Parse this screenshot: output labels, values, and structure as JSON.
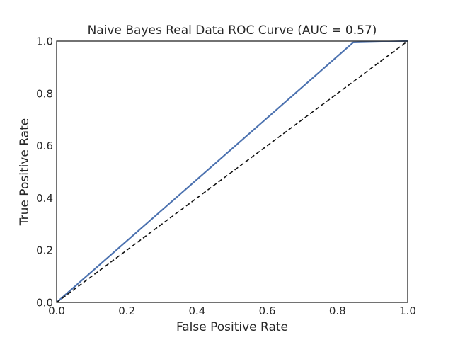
{
  "chart_data": {
    "type": "line",
    "title": "Naive Bayes Real Data ROC Curve (AUC = 0.57)",
    "xlabel": "False Positive Rate",
    "ylabel": "True Positive Rate",
    "xlim": [
      0.0,
      1.0
    ],
    "ylim": [
      0.0,
      1.0
    ],
    "xticks": [
      "0.0",
      "0.2",
      "0.4",
      "0.6",
      "0.8",
      "1.0"
    ],
    "yticks": [
      "0.0",
      "0.2",
      "0.4",
      "0.6",
      "0.8",
      "1.0"
    ],
    "grid": false,
    "series": [
      {
        "x": [
          0.0,
          0.845,
          1.0
        ],
        "y": [
          0.0,
          0.995,
          1.0
        ],
        "color": "#4c72b0",
        "style": "solid"
      },
      {
        "x": [
          0.0,
          1.0
        ],
        "y": [
          0.0,
          1.0
        ],
        "color": "#111111",
        "style": "dashed"
      }
    ]
  }
}
